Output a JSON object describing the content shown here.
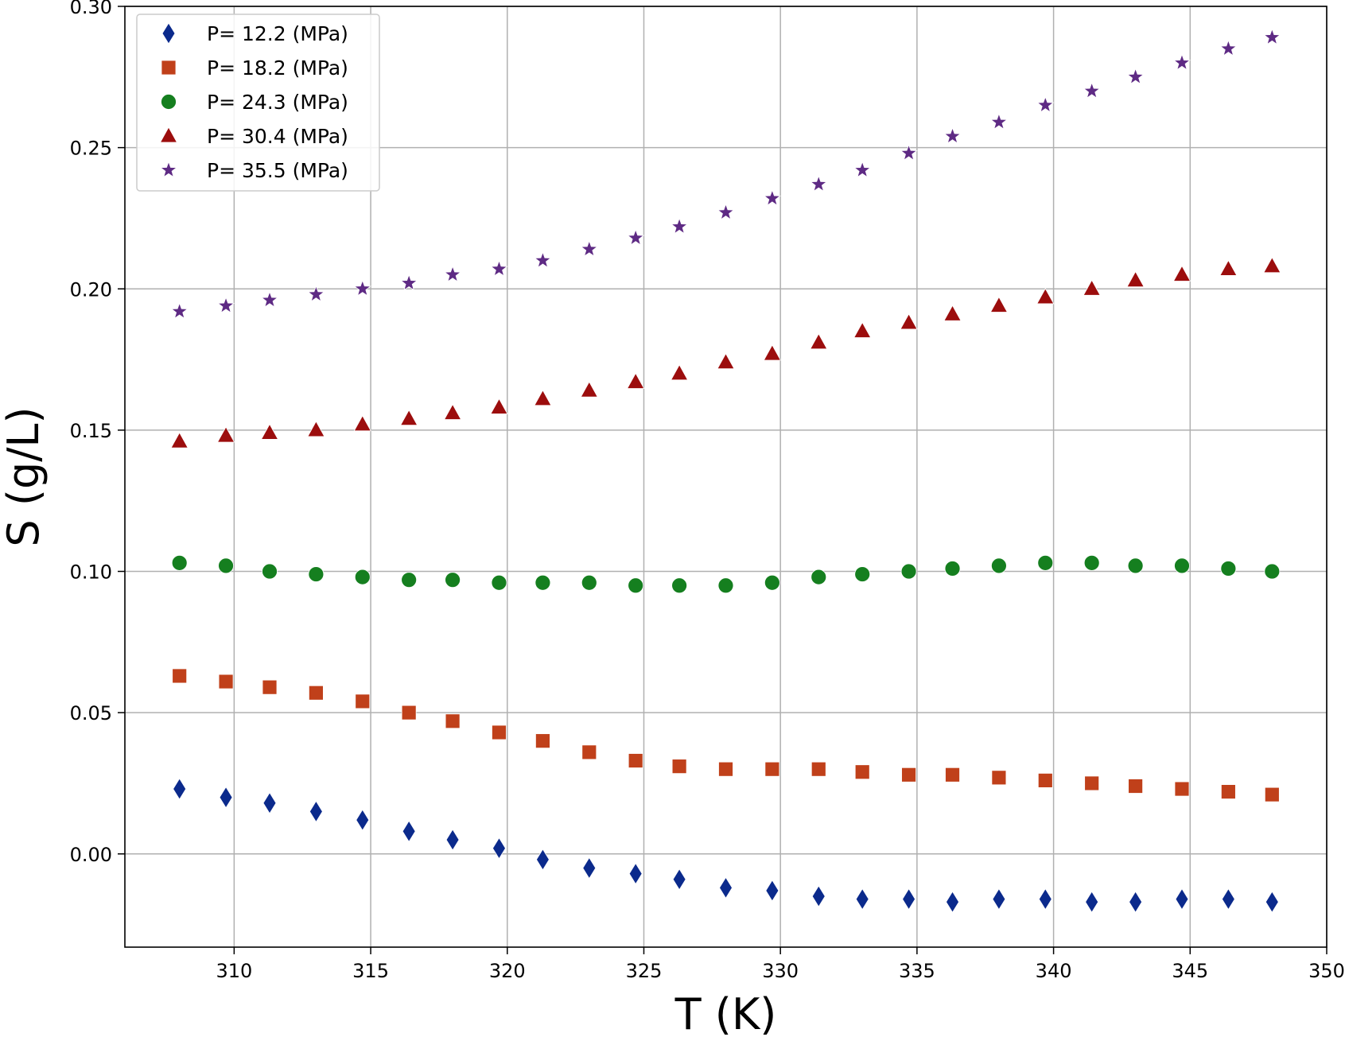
{
  "chart_data": {
    "type": "scatter",
    "title": "",
    "xlabel": "T (K)",
    "ylabel": "S (g/L)",
    "xlim": [
      306,
      350
    ],
    "ylim": [
      -0.033,
      0.3
    ],
    "xticks": [
      310,
      315,
      320,
      325,
      330,
      335,
      340,
      345,
      350
    ],
    "yticks": [
      0.0,
      0.05,
      0.1,
      0.15,
      0.2,
      0.25,
      0.3
    ],
    "ytick_labels": [
      "0.00",
      "0.05",
      "0.10",
      "0.15",
      "0.20",
      "0.25",
      "0.30"
    ],
    "grid": true,
    "legend_position": "top-left",
    "x": [
      308.0,
      309.7,
      311.3,
      313.0,
      314.7,
      316.4,
      318.0,
      319.7,
      321.3,
      323.0,
      324.7,
      326.3,
      328.0,
      329.7,
      331.4,
      333.0,
      334.7,
      336.3,
      338.0,
      339.7,
      341.4,
      343.0,
      344.7,
      346.4,
      348.0
    ],
    "series": [
      {
        "name": "P= 12.2 (MPa)",
        "marker": "diamond",
        "color": "#0b2a8c",
        "values": [
          0.023,
          0.02,
          0.018,
          0.015,
          0.012,
          0.008,
          0.005,
          0.002,
          -0.002,
          -0.005,
          -0.007,
          -0.009,
          -0.012,
          -0.013,
          -0.015,
          -0.016,
          -0.016,
          -0.017,
          -0.016,
          -0.016,
          -0.017,
          -0.017,
          -0.016,
          -0.016,
          -0.017
        ]
      },
      {
        "name": "P= 18.2 (MPa)",
        "marker": "square",
        "color": "#c0401a",
        "values": [
          0.063,
          0.061,
          0.059,
          0.057,
          0.054,
          0.05,
          0.047,
          0.043,
          0.04,
          0.036,
          0.033,
          0.031,
          0.03,
          0.03,
          0.03,
          0.029,
          0.028,
          0.028,
          0.027,
          0.026,
          0.025,
          0.024,
          0.023,
          0.022,
          0.021
        ]
      },
      {
        "name": "P= 24.3 (MPa)",
        "marker": "circle",
        "color": "#157f1f",
        "values": [
          0.103,
          0.102,
          0.1,
          0.099,
          0.098,
          0.097,
          0.097,
          0.096,
          0.096,
          0.096,
          0.095,
          0.095,
          0.095,
          0.096,
          0.098,
          0.099,
          0.1,
          0.101,
          0.102,
          0.103,
          0.103,
          0.102,
          0.102,
          0.101,
          0.1
        ]
      },
      {
        "name": "P= 30.4 (MPa)",
        "marker": "triangle",
        "color": "#9c0d0d",
        "values": [
          0.146,
          0.148,
          0.149,
          0.15,
          0.152,
          0.154,
          0.156,
          0.158,
          0.161,
          0.164,
          0.167,
          0.17,
          0.174,
          0.177,
          0.181,
          0.185,
          0.188,
          0.191,
          0.194,
          0.197,
          0.2,
          0.203,
          0.205,
          0.207,
          0.208
        ]
      },
      {
        "name": "P= 35.5 (MPa)",
        "marker": "star",
        "color": "#5e2a84",
        "values": [
          0.192,
          0.194,
          0.196,
          0.198,
          0.2,
          0.202,
          0.205,
          0.207,
          0.21,
          0.214,
          0.218,
          0.222,
          0.227,
          0.232,
          0.237,
          0.242,
          0.248,
          0.254,
          0.259,
          0.265,
          0.27,
          0.275,
          0.28,
          0.285,
          0.289
        ]
      }
    ]
  }
}
